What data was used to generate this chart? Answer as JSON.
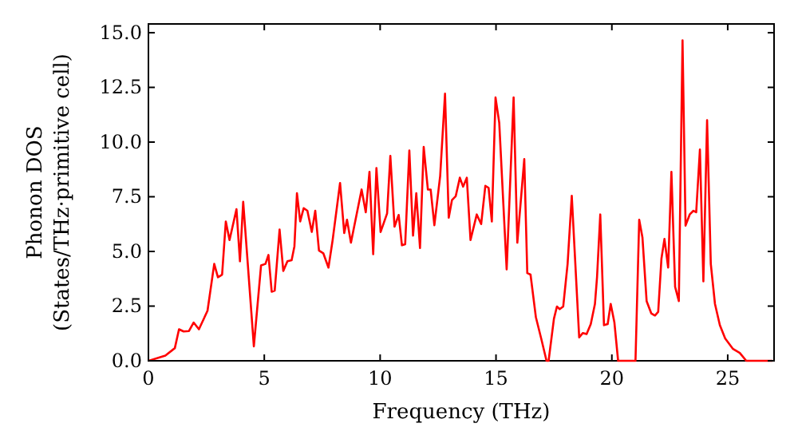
{
  "chart_data": {
    "type": "line",
    "xlabel": "Frequency (THz)",
    "ylabel": "Phonon DOS\n(States/THz·primitive cell)",
    "xlim": [
      0,
      27
    ],
    "ylim": [
      0,
      15.4
    ],
    "xticks": [
      0,
      5,
      10,
      15,
      20,
      25
    ],
    "yticks": [
      {
        "value": 0,
        "label": "0.0"
      },
      {
        "value": 2.5,
        "label": "2.5"
      },
      {
        "value": 5,
        "label": "5.0"
      },
      {
        "value": 7.5,
        "label": "7.5"
      },
      {
        "value": 10,
        "label": "10.0"
      },
      {
        "value": 12.5,
        "label": "12.5"
      },
      {
        "value": 15,
        "label": "15.0"
      }
    ],
    "grid": false,
    "series": [
      {
        "color": "#ff0000",
        "x": [
          0,
          0.73,
          1.14,
          1.32,
          1.52,
          1.75,
          1.95,
          2.18,
          2.55,
          2.84,
          3.0,
          3.18,
          3.34,
          3.5,
          3.8,
          3.95,
          4.09,
          4.55,
          4.86,
          5.05,
          5.18,
          5.32,
          5.45,
          5.66,
          5.82,
          6.0,
          6.18,
          6.3,
          6.41,
          6.55,
          6.7,
          6.86,
          7.05,
          7.2,
          7.36,
          7.55,
          7.77,
          7.95,
          8.27,
          8.45,
          8.57,
          8.74,
          9.2,
          9.38,
          9.54,
          9.7,
          9.84,
          10.02,
          10.3,
          10.44,
          10.62,
          10.8,
          10.94,
          11.08,
          11.26,
          11.42,
          11.56,
          11.72,
          11.88,
          12.06,
          12.18,
          12.34,
          12.59,
          12.8,
          12.96,
          13.1,
          13.26,
          13.44,
          13.58,
          13.74,
          13.9,
          14.17,
          14.36,
          14.54,
          14.68,
          14.82,
          14.98,
          15.14,
          15.46,
          15.76,
          15.92,
          16.22,
          16.35,
          16.49,
          16.72,
          16.95,
          17.18,
          17.27,
          17.5,
          17.63,
          17.75,
          17.9,
          18.09,
          18.27,
          18.59,
          18.75,
          18.91,
          19.09,
          19.27,
          19.36,
          19.5,
          19.66,
          19.82,
          19.95,
          20.11,
          20.27,
          21.02,
          21.18,
          21.32,
          21.5,
          21.7,
          21.86,
          22.0,
          22.14,
          22.27,
          22.43,
          22.57,
          22.73,
          22.89,
          23.05,
          23.18,
          23.36,
          23.52,
          23.64,
          23.8,
          23.95,
          24.11,
          24.27,
          24.45,
          24.66,
          24.89,
          25.23,
          25.52,
          25.8,
          26.93
        ],
        "values": [
          0,
          0.24,
          0.58,
          1.44,
          1.34,
          1.36,
          1.75,
          1.44,
          2.29,
          4.43,
          3.82,
          3.94,
          6.37,
          5.52,
          6.93,
          4.55,
          7.27,
          0.66,
          4.36,
          4.43,
          4.84,
          3.16,
          3.21,
          6.0,
          4.11,
          4.55,
          4.6,
          5.23,
          7.66,
          6.37,
          6.98,
          6.86,
          5.89,
          6.86,
          5.04,
          4.91,
          4.26,
          5.52,
          8.13,
          5.84,
          6.45,
          5.4,
          7.83,
          6.79,
          8.64,
          4.87,
          8.81,
          5.89,
          6.74,
          9.37,
          6.13,
          6.67,
          5.28,
          5.33,
          9.61,
          5.72,
          7.66,
          5.16,
          9.78,
          7.83,
          7.83,
          6.2,
          8.44,
          12.21,
          6.54,
          7.35,
          7.52,
          8.37,
          7.96,
          8.37,
          5.52,
          6.69,
          6.25,
          8.0,
          7.91,
          6.37,
          12.04,
          10.88,
          4.18,
          12.04,
          5.4,
          9.22,
          4.01,
          3.94,
          2.0,
          1.02,
          0,
          0,
          1.92,
          2.48,
          2.36,
          2.48,
          4.43,
          7.54,
          1.07,
          1.27,
          1.22,
          1.68,
          2.6,
          3.82,
          6.69,
          1.63,
          1.68,
          2.6,
          1.75,
          0,
          0,
          6.45,
          5.64,
          2.73,
          2.17,
          2.07,
          2.24,
          4.67,
          5.57,
          4.26,
          8.64,
          3.38,
          2.73,
          14.65,
          6.18,
          6.69,
          6.86,
          6.79,
          9.66,
          3.63,
          11.0,
          4.43,
          2.6,
          1.63,
          1.02,
          0.54,
          0.36,
          0,
          0
        ]
      }
    ]
  }
}
